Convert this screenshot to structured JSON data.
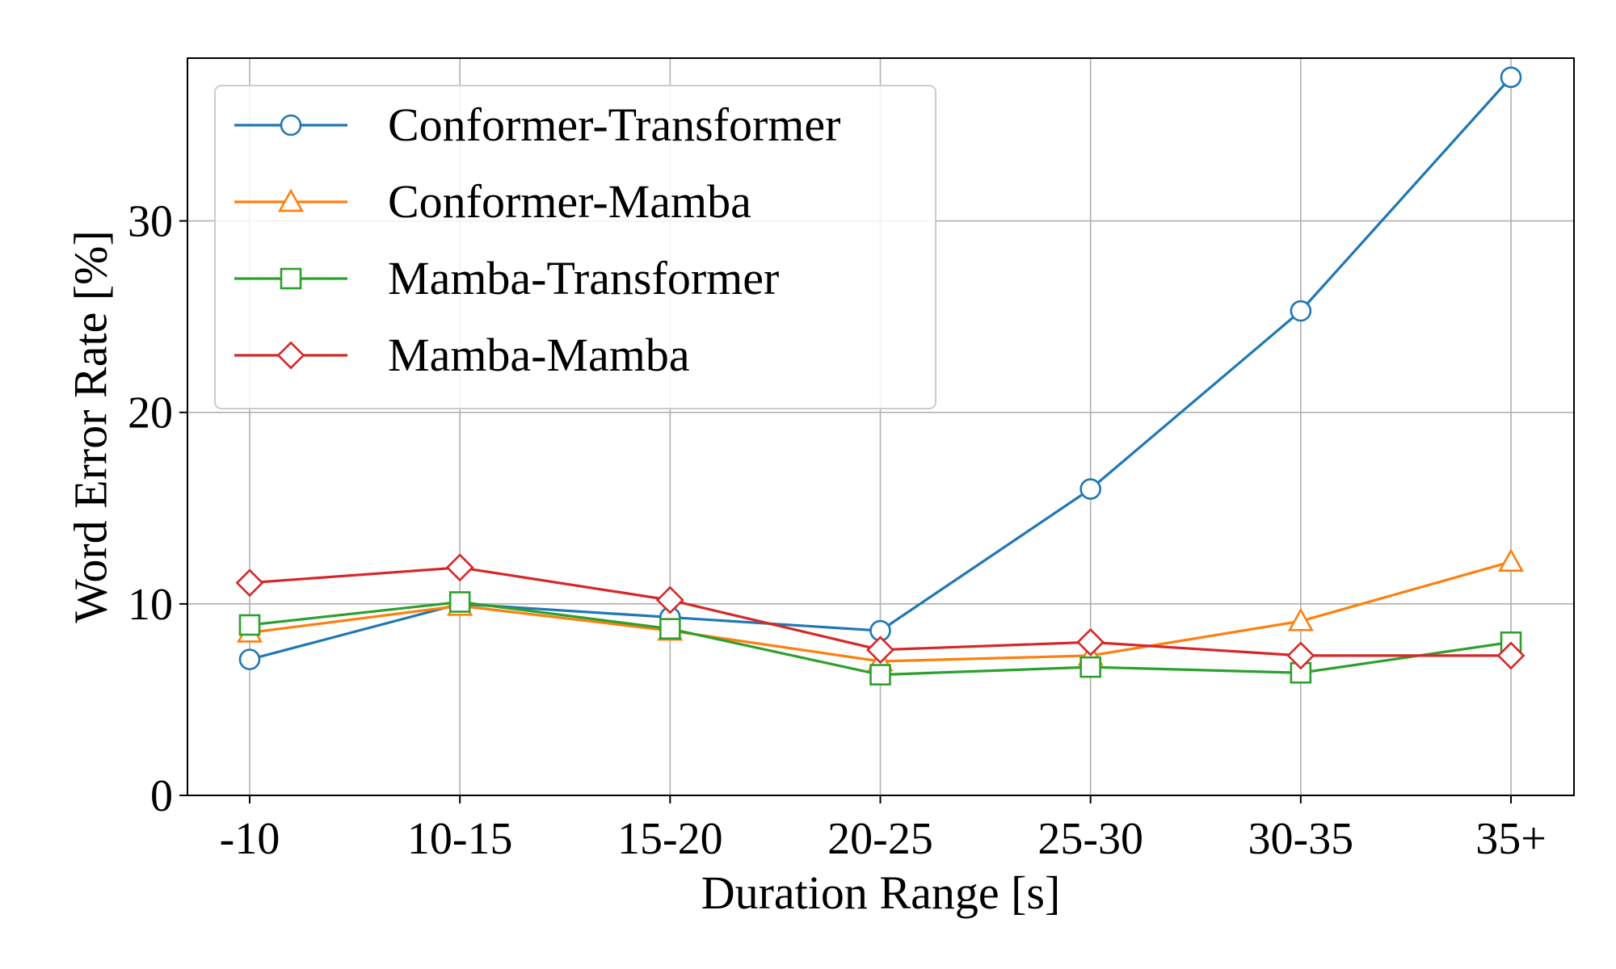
{
  "chart_data": {
    "type": "line",
    "title": "",
    "xlabel": "Duration Range [s]",
    "ylabel": "Word Error Rate [%]",
    "categories": [
      "-10",
      "10-15",
      "15-20",
      "20-25",
      "25-30",
      "30-35",
      "35+"
    ],
    "ylim": [
      0,
      38.5
    ],
    "yticks": [
      0,
      10,
      20,
      30
    ],
    "grid": true,
    "legend_position": "top-left",
    "series": [
      {
        "name": "Conformer-Transformer",
        "color": "#1f77b4",
        "marker": "circle",
        "values": [
          7.1,
          10.0,
          9.3,
          8.6,
          16.0,
          25.3,
          37.5
        ]
      },
      {
        "name": "Conformer-Mamba",
        "color": "#ff7f0e",
        "marker": "triangle",
        "values": [
          8.5,
          9.9,
          8.6,
          7.0,
          7.3,
          9.1,
          12.2
        ]
      },
      {
        "name": "Mamba-Transformer",
        "color": "#2ca02c",
        "marker": "square",
        "values": [
          8.9,
          10.1,
          8.7,
          6.3,
          6.7,
          6.4,
          8.0
        ]
      },
      {
        "name": "Mamba-Mamba",
        "color": "#d62728",
        "marker": "diamond",
        "values": [
          11.1,
          11.9,
          10.2,
          7.6,
          8.0,
          7.3,
          7.3
        ]
      }
    ]
  }
}
